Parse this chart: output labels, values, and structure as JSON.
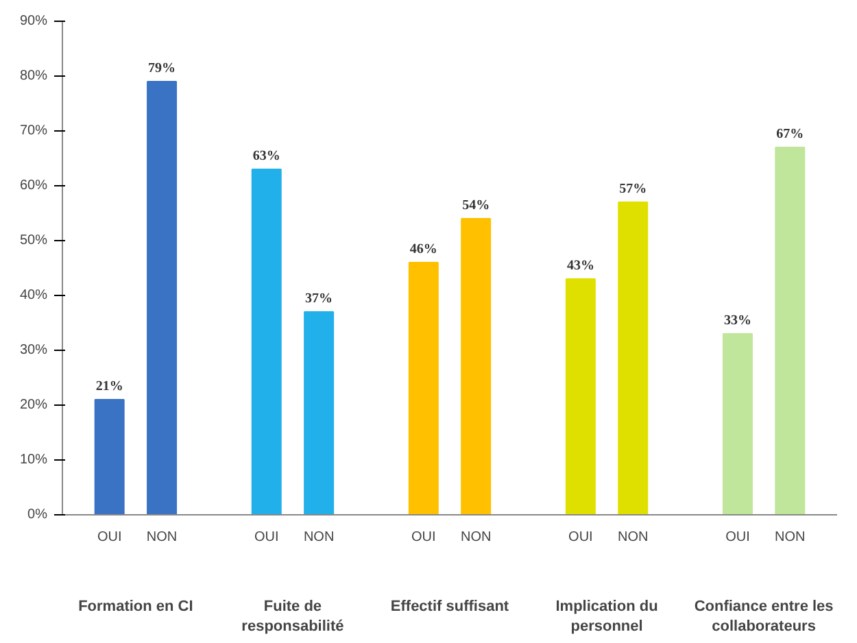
{
  "chart_data": {
    "type": "bar",
    "categories": [
      "OUI",
      "NON",
      "OUI",
      "NON",
      "OUI",
      "NON",
      "OUI",
      "NON",
      "OUI",
      "NON"
    ],
    "values": [
      21,
      79,
      63,
      37,
      46,
      54,
      43,
      57,
      33,
      67
    ],
    "colors": [
      "#3a72c4",
      "#3a72c4",
      "#22b0ea",
      "#22b0ea",
      "#ffc000",
      "#ffc000",
      "#e0e000",
      "#e0e000",
      "#bfe69a",
      "#bfe69a"
    ],
    "value_labels": [
      "21%",
      "79%",
      "63%",
      "37%",
      "46%",
      "54%",
      "43%",
      "57%",
      "33%",
      "67%"
    ],
    "ylim": [
      0,
      90
    ],
    "yticks": [
      {
        "value": 0,
        "label": "0%"
      },
      {
        "value": 10,
        "label": "10%"
      },
      {
        "value": 20,
        "label": "20%"
      },
      {
        "value": 30,
        "label": "30%"
      },
      {
        "value": 40,
        "label": "40%"
      },
      {
        "value": 50,
        "label": "50%"
      },
      {
        "value": 60,
        "label": "60%"
      },
      {
        "value": 70,
        "label": "70%"
      },
      {
        "value": 80,
        "label": "80%"
      },
      {
        "value": 90,
        "label": "90%"
      }
    ],
    "annotations": [
      "Formation en CI",
      "Fuite de responsabilité",
      "Effectif suffisant",
      "Implication du personnel",
      "Confiance entre les collaborateurs"
    ],
    "grid": false
  }
}
